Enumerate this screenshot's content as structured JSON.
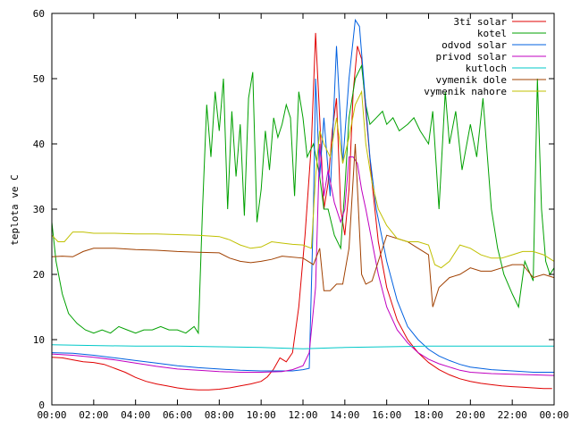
{
  "chart_data": {
    "type": "line",
    "ylabel": "teplota ve C",
    "ylim": [
      0,
      60
    ],
    "xlim": [
      0,
      24
    ],
    "x_unit": "hours",
    "x_tick_labels": [
      "00:00",
      "02:00",
      "04:00",
      "06:00",
      "08:00",
      "10:00",
      "12:00",
      "14:00",
      "16:00",
      "18:00",
      "20:00",
      "22:00",
      "00:00"
    ],
    "y_tick_labels": [
      "0",
      "10",
      "20",
      "30",
      "40",
      "50",
      "60"
    ],
    "legend_position": "top-right",
    "grid": false,
    "series": [
      {
        "name": "3ti solar",
        "color": "#e00000",
        "x": [
          0,
          0.5,
          1,
          1.5,
          2,
          2.5,
          3,
          3.5,
          4,
          4.5,
          5,
          5.5,
          6,
          6.5,
          7,
          7.5,
          8,
          8.5,
          9,
          9.5,
          10,
          10.3,
          10.6,
          10.9,
          11.2,
          11.5,
          11.8,
          12.1,
          12.4,
          12.6,
          12.8,
          13,
          13.2,
          13.4,
          13.6,
          13.8,
          14,
          14.2,
          14.4,
          14.6,
          14.8,
          15,
          15.3,
          15.6,
          16,
          16.5,
          17,
          17.5,
          18,
          18.5,
          19,
          19.5,
          20,
          20.5,
          21,
          21.5,
          22,
          22.5,
          23,
          23.5,
          23.9
        ],
        "y": [
          7.3,
          7.2,
          6.9,
          6.6,
          6.5,
          6.2,
          5.6,
          5,
          4.2,
          3.6,
          3.2,
          2.9,
          2.6,
          2.4,
          2.3,
          2.3,
          2.4,
          2.6,
          2.9,
          3.2,
          3.6,
          4.3,
          5.5,
          7.2,
          6.6,
          8,
          15,
          26,
          40,
          57,
          44,
          30,
          34,
          42,
          47,
          30,
          26,
          33,
          48,
          55,
          53,
          45,
          34,
          25,
          18,
          13,
          10,
          8,
          6.5,
          5.4,
          4.6,
          4,
          3.6,
          3.3,
          3.1,
          2.9,
          2.8,
          2.7,
          2.6,
          2.5,
          2.5
        ]
      },
      {
        "name": "kotel",
        "color": "#00a000",
        "x": [
          0,
          0.2,
          0.5,
          0.8,
          1.2,
          1.6,
          2,
          2.4,
          2.8,
          3.2,
          3.6,
          4,
          4.4,
          4.8,
          5.2,
          5.6,
          6,
          6.4,
          6.8,
          7,
          7.2,
          7.4,
          7.6,
          7.8,
          8,
          8.2,
          8.4,
          8.6,
          8.8,
          9,
          9.2,
          9.4,
          9.6,
          9.8,
          10,
          10.2,
          10.4,
          10.6,
          10.8,
          11,
          11.2,
          11.4,
          11.6,
          11.8,
          12,
          12.2,
          12.5,
          12.8,
          13,
          13.2,
          13.5,
          13.8,
          14,
          14.2,
          14.5,
          14.8,
          15,
          15.2,
          15.5,
          15.8,
          16,
          16.3,
          16.6,
          17,
          17.3,
          17.6,
          18,
          18.2,
          18.5,
          18.8,
          19,
          19.3,
          19.6,
          20,
          20.3,
          20.6,
          21,
          21.3,
          21.6,
          22,
          22.3,
          22.6,
          23,
          23.2,
          23.4,
          23.6,
          23.8,
          24
        ],
        "y": [
          28,
          22,
          17,
          14,
          12.5,
          11.5,
          11,
          11.5,
          11,
          12,
          11.5,
          11,
          11.5,
          11.5,
          12,
          11.5,
          11.5,
          11,
          12,
          11,
          30,
          46,
          38,
          48,
          42,
          50,
          30,
          45,
          35,
          43,
          29,
          47,
          51,
          28,
          33,
          42,
          36,
          44,
          41,
          43,
          46,
          44,
          32,
          48,
          44,
          38,
          40,
          35,
          30,
          30,
          26,
          24,
          33,
          44,
          50,
          52,
          46,
          43,
          44,
          45,
          43,
          44,
          42,
          43,
          44,
          42,
          40,
          45,
          30,
          48,
          40,
          45,
          36,
          43,
          38,
          47,
          30,
          24,
          20,
          17,
          15,
          22,
          19,
          50,
          30,
          22,
          20,
          21
        ]
      },
      {
        "name": "odvod solar",
        "color": "#0060e0",
        "x": [
          0,
          1,
          2,
          3,
          4,
          5,
          6,
          7,
          8,
          9,
          10,
          11,
          11.5,
          12,
          12.3,
          12.5,
          12.6,
          12.8,
          13,
          13.3,
          13.6,
          13.9,
          14.2,
          14.5,
          14.7,
          14.9,
          15.2,
          15.5,
          16,
          16.5,
          17,
          17.5,
          18,
          18.5,
          19,
          19.5,
          20,
          21,
          22,
          23,
          24
        ],
        "y": [
          8,
          7.9,
          7.6,
          7.2,
          6.8,
          6.4,
          6,
          5.7,
          5.5,
          5.3,
          5.2,
          5.2,
          5.2,
          5.4,
          5.6,
          30,
          50,
          35,
          44,
          32,
          55,
          37,
          50,
          59,
          58,
          50,
          38,
          30,
          22,
          16,
          12,
          10,
          8.5,
          7.5,
          6.8,
          6.2,
          5.8,
          5.4,
          5.2,
          5,
          5
        ]
      },
      {
        "name": "privod solar",
        "color": "#c000c0",
        "x": [
          0,
          1,
          2,
          3,
          4,
          5,
          6,
          7,
          8,
          9,
          10,
          11,
          11.5,
          12,
          12.3,
          12.6,
          12.8,
          13,
          13.2,
          13.5,
          13.8,
          14,
          14.2,
          14.4,
          14.6,
          14.8,
          15,
          15.3,
          15.6,
          16,
          16.5,
          17,
          17.5,
          18,
          18.5,
          19,
          19.5,
          20,
          21,
          22,
          23,
          24
        ],
        "y": [
          7.8,
          7.6,
          7.3,
          6.9,
          6.4,
          5.9,
          5.5,
          5.3,
          5.1,
          5,
          5,
          5.1,
          5.4,
          6,
          8,
          18,
          40,
          32,
          36,
          31,
          28,
          30,
          38,
          38,
          37,
          33,
          30,
          25,
          20,
          15,
          11.5,
          9.5,
          8,
          7,
          6.3,
          5.8,
          5.3,
          5,
          4.8,
          4.7,
          4.6,
          4.5
        ]
      },
      {
        "name": "kutloch",
        "color": "#00c8c8",
        "x": [
          0,
          2,
          4,
          6,
          8,
          10,
          12,
          13,
          14,
          16,
          18,
          20,
          22,
          24
        ],
        "y": [
          9.2,
          9.1,
          9,
          9,
          8.9,
          8.8,
          8.6,
          8.7,
          8.8,
          8.9,
          9,
          9,
          9,
          9
        ]
      },
      {
        "name": "vymenik dole",
        "color": "#a04000",
        "x": [
          0,
          0.5,
          1,
          1.5,
          2,
          3,
          4,
          5,
          6,
          7,
          8,
          8.5,
          9,
          9.5,
          10,
          10.5,
          11,
          12,
          12.5,
          12.8,
          13,
          13.3,
          13.6,
          13.9,
          14.2,
          14.5,
          14.8,
          15,
          15.3,
          15.6,
          16,
          16.5,
          17,
          17.5,
          18,
          18.2,
          18.5,
          19,
          19.5,
          20,
          20.5,
          21,
          21.5,
          22,
          22.5,
          23,
          23.5,
          24
        ],
        "y": [
          22.7,
          22.8,
          22.7,
          23.5,
          24,
          24,
          23.8,
          23.7,
          23.5,
          23.4,
          23.3,
          22.5,
          22,
          21.8,
          22,
          22.3,
          22.8,
          22.5,
          21.5,
          24,
          17.5,
          17.5,
          18.5,
          18.5,
          24,
          40,
          20,
          18.5,
          19,
          22,
          26,
          25.5,
          25,
          24,
          23,
          15,
          18,
          19.5,
          20,
          21,
          20.5,
          20.5,
          21,
          21.5,
          21.5,
          19.5,
          20,
          19.5
        ]
      },
      {
        "name": "vymenik nahore",
        "color": "#c0c000",
        "x": [
          0,
          0.3,
          0.6,
          1,
          1.5,
          2,
          3,
          4,
          5,
          6,
          7,
          8,
          8.5,
          9,
          9.5,
          10,
          10.5,
          11,
          11.5,
          12,
          12.4,
          12.6,
          12.8,
          13,
          13.3,
          13.6,
          13.9,
          14.2,
          14.5,
          14.8,
          15,
          15.3,
          15.6,
          16,
          16.5,
          17,
          17.5,
          18,
          18.3,
          18.6,
          19,
          19.5,
          20,
          20.5,
          21,
          21.5,
          22,
          22.5,
          23,
          23.5,
          24
        ],
        "y": [
          26,
          25,
          25,
          26.5,
          26.5,
          26.3,
          26.3,
          26.2,
          26.2,
          26.1,
          26,
          25.8,
          25.3,
          24.5,
          24,
          24.2,
          25,
          24.8,
          24.6,
          24.5,
          24,
          35,
          42,
          40,
          38,
          44,
          37,
          41,
          46,
          48,
          40,
          34,
          30,
          27.5,
          25.5,
          25,
          25,
          24.5,
          21.5,
          21,
          22,
          24.5,
          24,
          23,
          22.5,
          22.5,
          23,
          23.5,
          23.5,
          23,
          22
        ]
      }
    ]
  }
}
